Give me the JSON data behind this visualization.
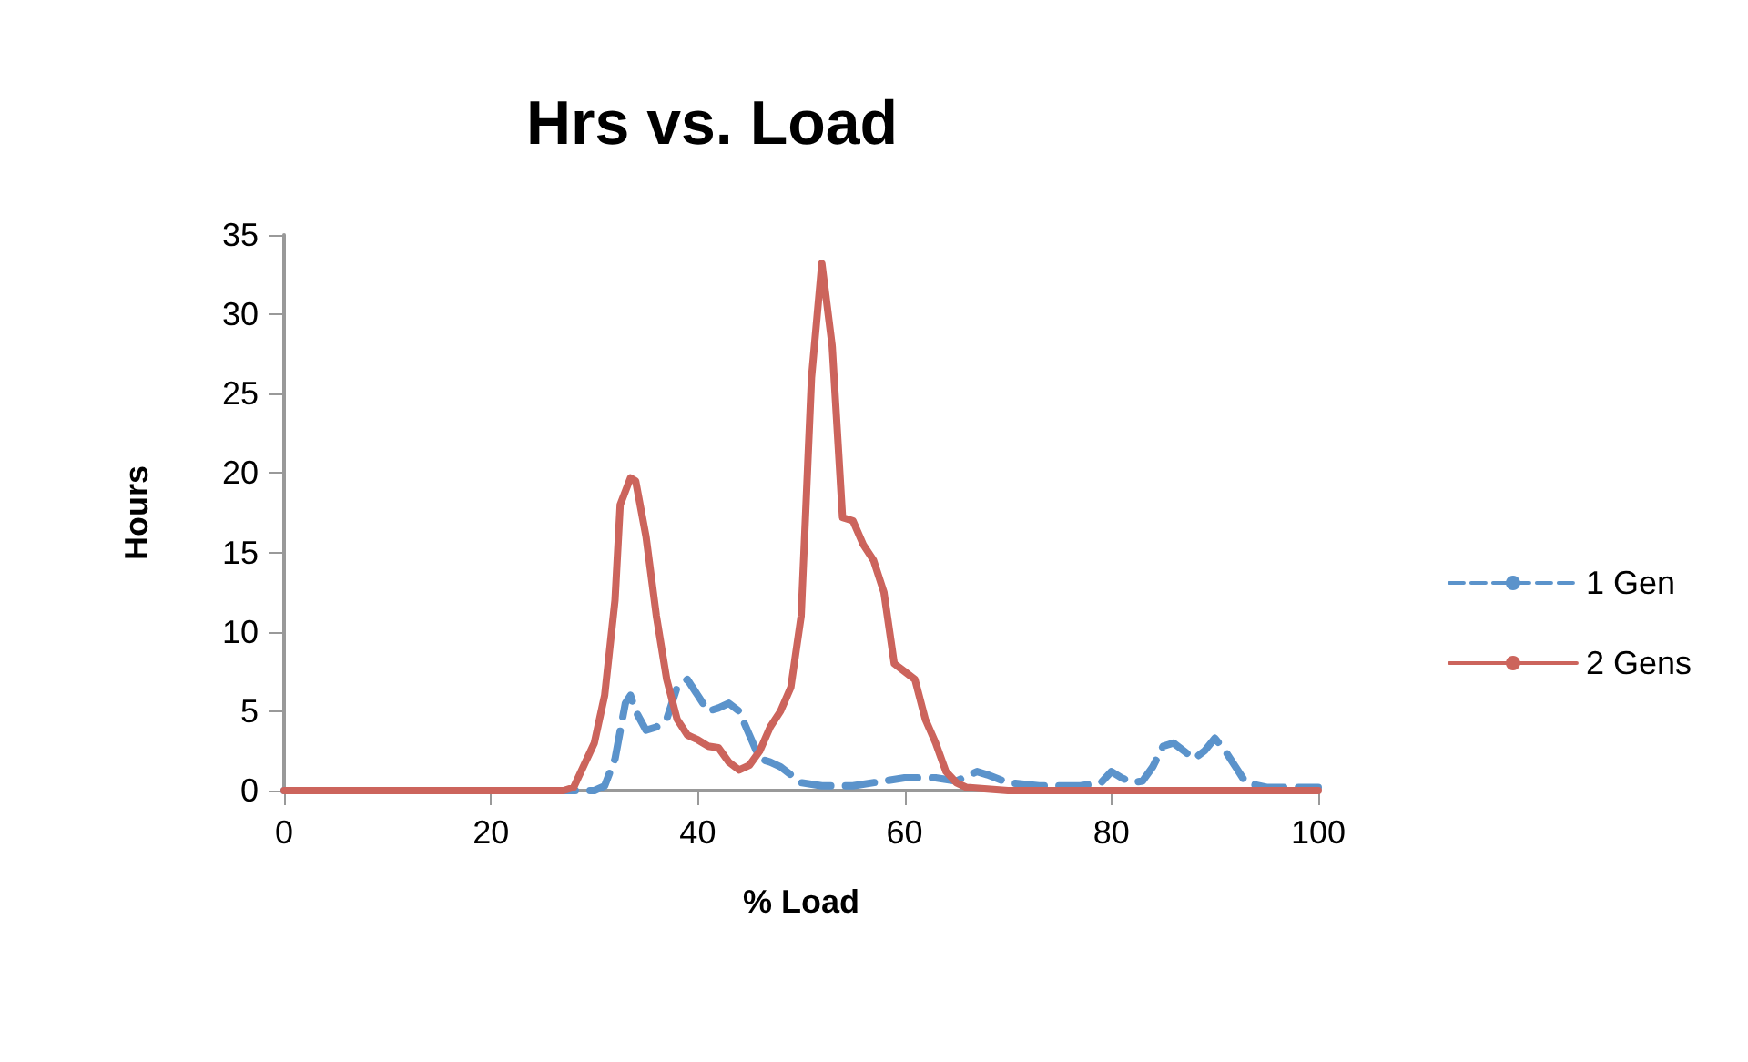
{
  "chart_data": {
    "type": "line",
    "title": "Hrs vs. Load",
    "xlabel": "% Load",
    "ylabel": "Hours",
    "xlim": [
      0,
      100
    ],
    "xticks": [
      0,
      20,
      40,
      60,
      80,
      100
    ],
    "ylim": [
      0,
      35
    ],
    "yticks": [
      0,
      5,
      10,
      15,
      20,
      25,
      30,
      35
    ],
    "grid": false,
    "legend": "right",
    "marker": "none",
    "series": [
      {
        "name": "1 Gen",
        "color": "#5b93cb",
        "line_style": "dashed",
        "x": [
          0,
          30,
          31,
          32,
          33,
          33.5,
          34,
          35,
          36,
          37,
          38,
          39,
          40,
          41,
          42,
          43,
          44,
          45,
          46,
          47,
          48,
          49,
          50,
          52,
          55,
          58,
          60,
          63,
          65,
          67,
          68,
          70,
          73,
          77,
          79,
          80,
          81,
          82,
          83,
          84,
          85,
          86,
          87,
          88,
          89,
          90,
          91,
          92,
          93,
          95,
          100
        ],
        "values": [
          0,
          0,
          0.3,
          2,
          5.5,
          6,
          5,
          3.8,
          4,
          4.5,
          6.5,
          7,
          6,
          5,
          5.2,
          5.5,
          5,
          3.5,
          2,
          1.8,
          1.5,
          1,
          0.5,
          0.3,
          0.3,
          0.6,
          0.8,
          0.8,
          0.6,
          1.2,
          1,
          0.5,
          0.3,
          0.3,
          0.5,
          1.2,
          0.8,
          0.5,
          0.6,
          1.5,
          2.8,
          3,
          2.5,
          2,
          2.5,
          3.3,
          2.5,
          1.5,
          0.5,
          0.2,
          0.2
        ]
      },
      {
        "name": "2 Gens",
        "color": "#cc645c",
        "line_style": "solid",
        "x": [
          0,
          27,
          28,
          30,
          31,
          32,
          32.5,
          33.5,
          34,
          35,
          36,
          37,
          38,
          39,
          40,
          41,
          42,
          43,
          44,
          45,
          46,
          47,
          48,
          49,
          50,
          51,
          52,
          53,
          54,
          55,
          56,
          57,
          58,
          59,
          60,
          61,
          62,
          63,
          64,
          65,
          66,
          70,
          100
        ],
        "values": [
          0,
          0,
          0.2,
          3,
          6,
          12,
          18,
          19.7,
          19.5,
          16,
          11,
          7,
          4.5,
          3.5,
          3.2,
          2.8,
          2.7,
          1.8,
          1.3,
          1.6,
          2.5,
          4,
          5,
          6.5,
          11,
          26,
          33.2,
          28,
          17.2,
          17,
          15.5,
          14.5,
          12.5,
          8,
          7.5,
          7,
          4.5,
          3,
          1.2,
          0.5,
          0.2,
          0,
          0
        ]
      }
    ]
  }
}
